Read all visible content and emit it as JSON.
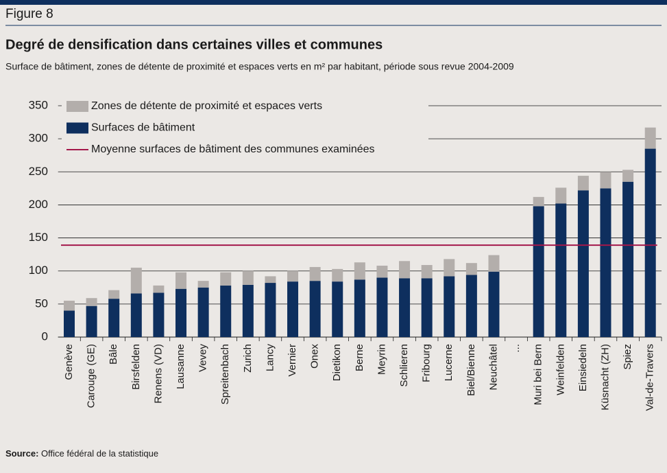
{
  "chart_data": {
    "type": "stacked_bar",
    "figure_label": "Figure 8",
    "title": "Degré de densification dans certaines villes et communes",
    "subtitle": "Surface de bâtiment, zones de détente de proximité et espaces verts en m² par habitant, période sous revue 2004-2009",
    "source_label": "Source:",
    "source_text": "Office fédéral de la statistique",
    "categories": [
      "Genève",
      "Carouge (GE)",
      "Bâle",
      "Birsfelden",
      "Renens (VD)",
      "Lausanne",
      "Vevey",
      "Spreitenbach",
      "Zurich",
      "Lancy",
      "Vernier",
      "Onex",
      "Dietikon",
      "Berne",
      "Meyrin",
      "Schlieren",
      "Fribourg",
      "Lucerne",
      "Biel/Bienne",
      "Neuchâtel",
      "...",
      "Muri bei Bern",
      "Weinfelden",
      "Einsiedeln",
      "Küsnacht (ZH)",
      "Spiez",
      "Val-de-Travers"
    ],
    "series": [
      {
        "name": "Surfaces de bâtiment",
        "color": "#0e2f5e",
        "values": [
          40,
          47,
          58,
          66,
          67,
          73,
          75,
          78,
          79,
          82,
          84,
          85,
          84,
          87,
          90,
          89,
          89,
          92,
          94,
          99,
          null,
          198,
          202,
          222,
          225,
          235,
          285
        ]
      },
      {
        "name": "Zones de détente de proximité et espaces verts",
        "color": "#b3aeab",
        "values": [
          15,
          12,
          13,
          39,
          11,
          25,
          10,
          20,
          21,
          10,
          16,
          21,
          19,
          26,
          18,
          26,
          20,
          26,
          18,
          25,
          null,
          14,
          24,
          22,
          25,
          18,
          32
        ]
      }
    ],
    "mean_line": {
      "name": "Moyenne surfaces de bâtiment des communes examinées",
      "value": 139,
      "color": "#a3174a"
    },
    "ylim": [
      0,
      350
    ],
    "yticks": [
      0,
      50,
      100,
      150,
      200,
      250,
      300,
      350
    ],
    "grid": true
  }
}
